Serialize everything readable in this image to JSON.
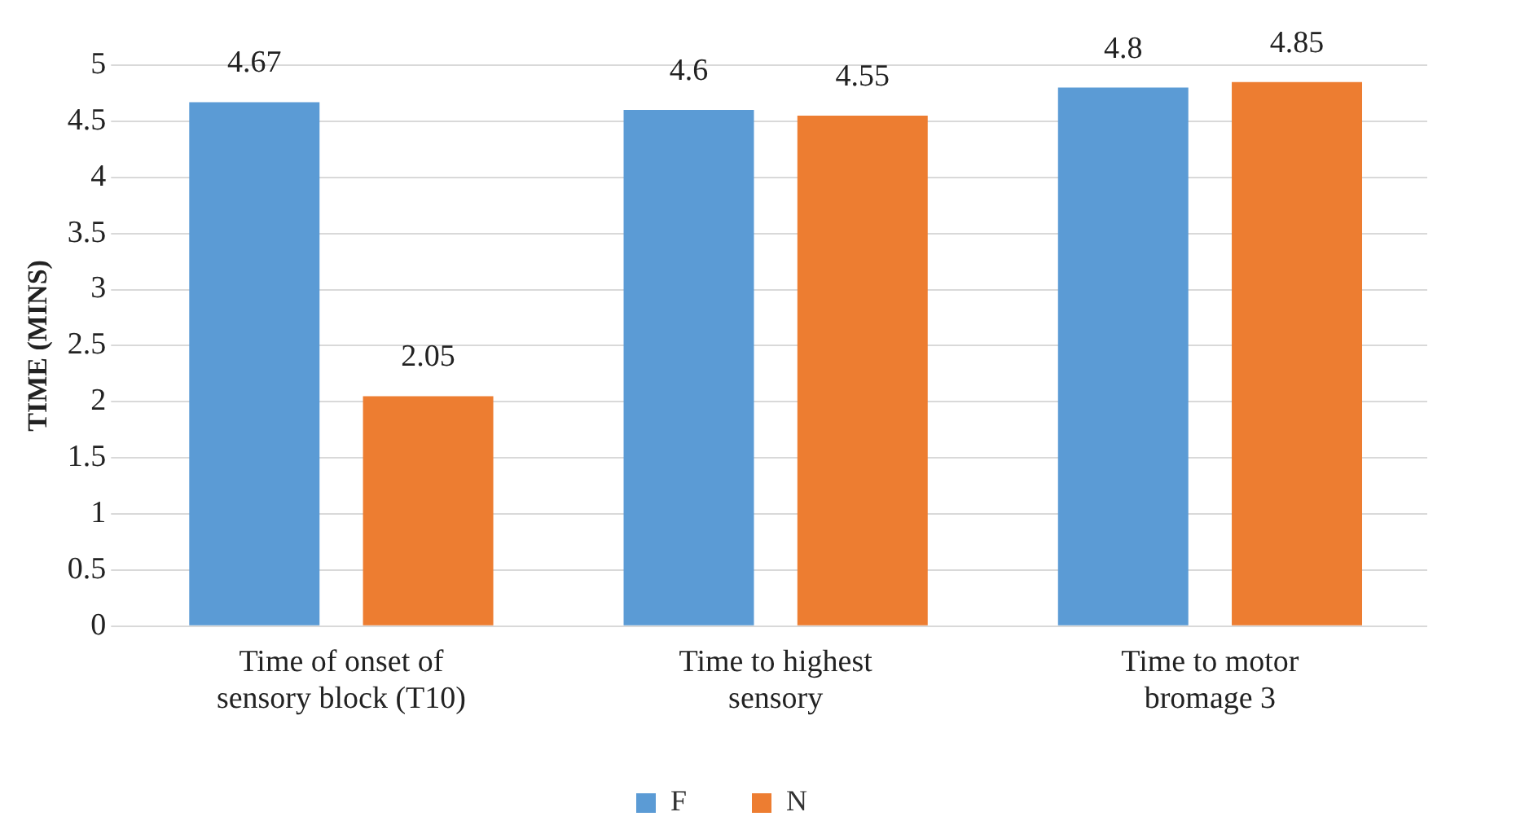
{
  "chart_data": {
    "type": "bar",
    "ylabel": "TIME (MINS)",
    "categories": [
      "Time of onset of sensory block (T10)",
      "Time to highest sensory",
      "Time to motor bromage 3"
    ],
    "series": [
      {
        "name": "F",
        "color": "#5b9bd5",
        "values": [
          4.67,
          4.6,
          4.8
        ]
      },
      {
        "name": "N",
        "color": "#ed7d31",
        "values": [
          2.05,
          4.55,
          4.85
        ]
      }
    ],
    "ylim": [
      0,
      5
    ],
    "yticks": [
      0,
      0.5,
      1,
      1.5,
      2,
      2.5,
      3,
      3.5,
      4,
      4.5,
      5
    ],
    "grid": "y",
    "legend": "bottom",
    "data_labels": true
  }
}
